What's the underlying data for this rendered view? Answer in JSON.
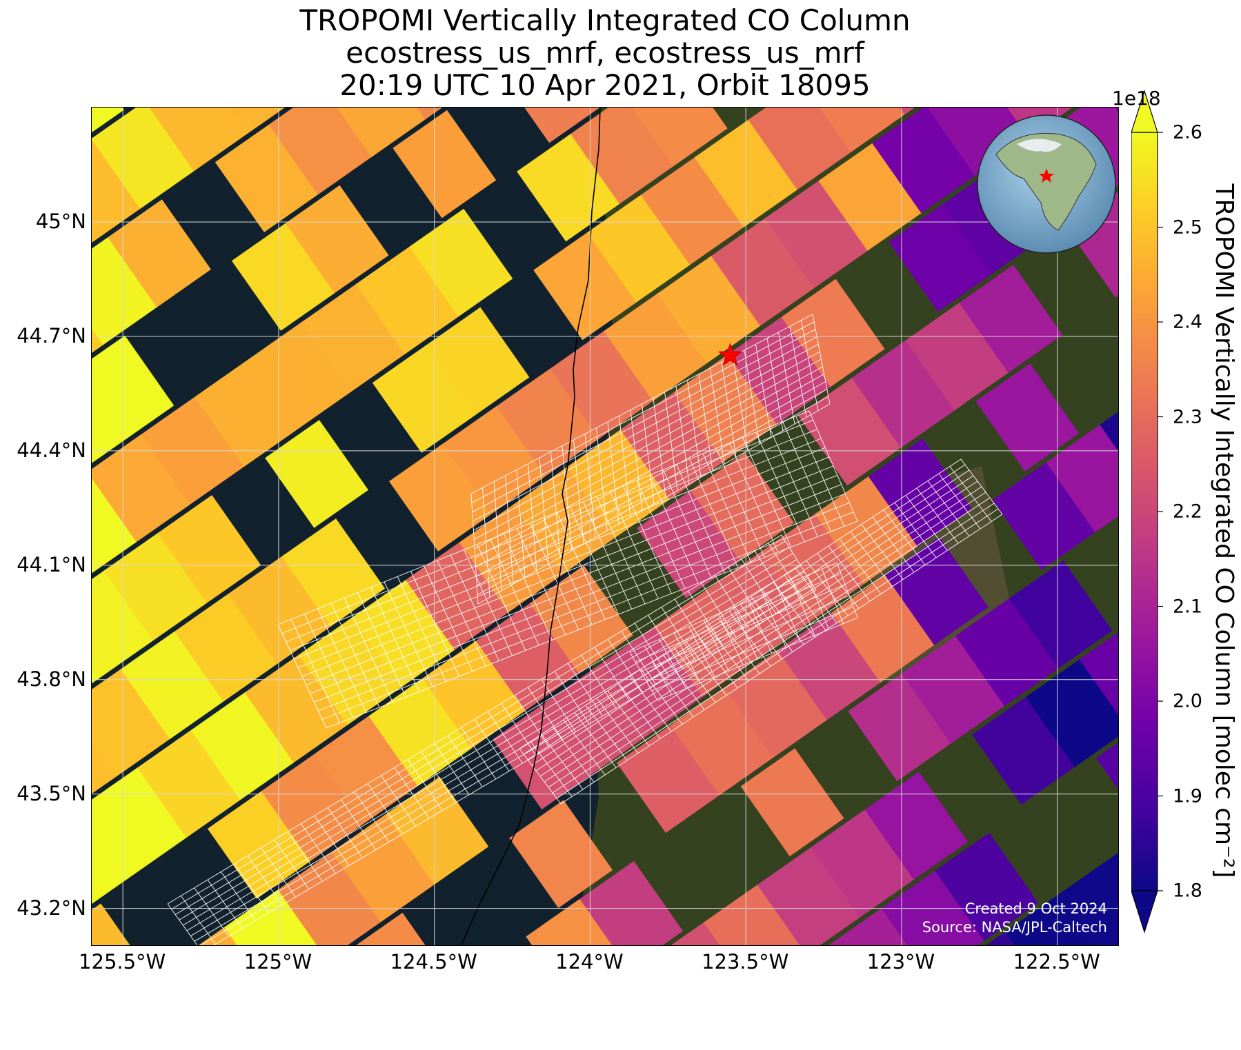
{
  "title": {
    "line1": "TROPOMI Vertically Integrated CO Column",
    "line2": "ecostress_us_mrf, ecostress_us_mrf",
    "line3": "20:19 UTC 10 Apr 2021, Orbit 18095"
  },
  "map": {
    "lon_range": [
      -125.6,
      -122.3
    ],
    "lat_range": [
      43.1,
      45.3
    ],
    "x_ticks": [
      "125.5°W",
      "125°W",
      "124.5°W",
      "124°W",
      "123.5°W",
      "123°W",
      "122.5°W"
    ],
    "y_ticks": [
      "45°N",
      "44.7°N",
      "44.4°N",
      "44.1°N",
      "43.8°N",
      "43.5°N",
      "43.2°N"
    ],
    "gridlines": true,
    "site_marker": {
      "lon": -123.55,
      "lat": 44.65,
      "color": "#ff0000",
      "icon": "star-icon"
    },
    "background": "satellite imagery, ocean #11222e",
    "overlay": "white footprint outline grid",
    "credit_line1": "Created 9 Oct 2024",
    "credit_line2": "Source: NASA/JPL-Caltech"
  },
  "colorbar": {
    "multiplier": "1e18",
    "label": "TROPOMI Vertically Integrated CO Column [molec cm⁻²]",
    "ticks": [
      "1.8",
      "1.9",
      "2.0",
      "2.1",
      "2.2",
      "2.3",
      "2.4",
      "2.5",
      "2.6"
    ],
    "vmin": 1.8,
    "vmax": 2.6,
    "colormap": "plasma",
    "extend": "both"
  },
  "inset_globe": {
    "icon": "globe-inset-icon",
    "marker_color": "#ff0000"
  }
}
